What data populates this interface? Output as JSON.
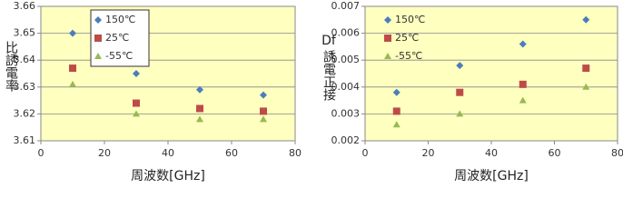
{
  "chart_data": [
    {
      "type": "scatter",
      "ylabel": [
        "比誘電率"
      ],
      "xlabel": "周波数[GHz]",
      "xlim": [
        0,
        80
      ],
      "xticks": [
        0,
        20,
        40,
        60,
        80
      ],
      "ylim": [
        3.61,
        3.66
      ],
      "yticks": [
        3.61,
        3.62,
        3.63,
        3.64,
        3.65,
        3.66
      ],
      "grid": true,
      "legend": "upper-left",
      "legend_box": true,
      "series": [
        {
          "name": "150℃",
          "color": "#4a7ebb",
          "marker": "diamond",
          "x": [
            10,
            30,
            50,
            70
          ],
          "values": [
            3.65,
            3.635,
            3.629,
            3.627
          ]
        },
        {
          "name": "25℃",
          "color": "#be4b48",
          "marker": "square",
          "x": [
            10,
            30,
            50,
            70
          ],
          "values": [
            3.637,
            3.624,
            3.622,
            3.621
          ]
        },
        {
          "name": "-55℃",
          "color": "#98b954",
          "marker": "triangle",
          "x": [
            10,
            30,
            50,
            70
          ],
          "values": [
            3.631,
            3.62,
            3.618,
            3.618
          ]
        }
      ]
    },
    {
      "type": "scatter",
      "ylabel": [
        "Df",
        "誘電正接"
      ],
      "xlabel": "周波数[GHz]",
      "xlim": [
        0,
        80
      ],
      "xticks": [
        0,
        20,
        40,
        60,
        80
      ],
      "ylim": [
        0.002,
        0.007
      ],
      "yticks": [
        0.002,
        0.003,
        0.004,
        0.005,
        0.006,
        0.007
      ],
      "grid": true,
      "legend": "upper-left",
      "legend_box": false,
      "series": [
        {
          "name": "150℃",
          "color": "#4a7ebb",
          "marker": "diamond",
          "x": [
            10,
            30,
            50,
            70
          ],
          "values": [
            0.0038,
            0.0048,
            0.0056,
            0.0065
          ]
        },
        {
          "name": "25℃",
          "color": "#be4b48",
          "marker": "square",
          "x": [
            10,
            30,
            50,
            70
          ],
          "values": [
            0.0031,
            0.0038,
            0.0041,
            0.0047
          ]
        },
        {
          "name": "-55℃",
          "color": "#98b954",
          "marker": "triangle",
          "x": [
            10,
            30,
            50,
            70
          ],
          "values": [
            0.0026,
            0.003,
            0.0035,
            0.004
          ]
        }
      ]
    }
  ]
}
